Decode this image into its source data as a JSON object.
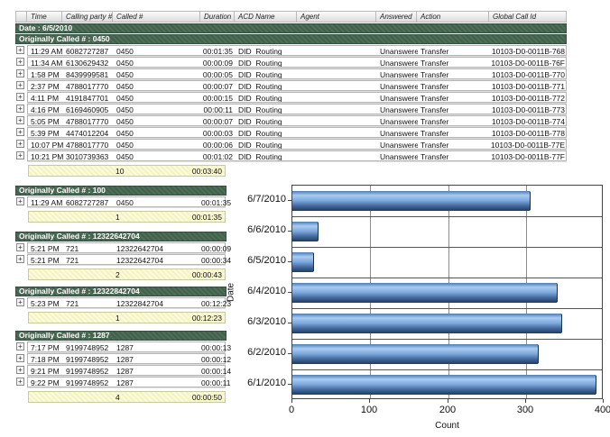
{
  "window": {
    "background": "#ffffff"
  },
  "table": {
    "expander_glyph": "+",
    "columns": [
      "",
      "Time",
      "Calling party #",
      "Called #",
      "Duration",
      "ACD Name",
      "Agent",
      "Answered",
      "Action",
      "Global Call Id"
    ],
    "date_band": "Date : 6/5/2010",
    "groups": [
      {
        "header": "Originally Called # : 0450",
        "rows": [
          {
            "time": "11:29 AM",
            "calling": "6082727287",
            "called": "0450",
            "duration": "00:01:35",
            "acd": "DID_Routing",
            "agent": "",
            "answered": "Unanswered",
            "action": "Transfer",
            "global_id": "10103-D0-0011B-768"
          },
          {
            "time": "11:34 AM",
            "calling": "6130629432",
            "called": "0450",
            "duration": "00:00:09",
            "acd": "DID_Routing",
            "agent": "",
            "answered": "Unanswered",
            "action": "Transfer",
            "global_id": "10103-D0-0011B-76F"
          },
          {
            "time": "1:58 PM",
            "calling": "8439999581",
            "called": "0450",
            "duration": "00:00:05",
            "acd": "DID_Routing",
            "agent": "",
            "answered": "Unanswered",
            "action": "Transfer",
            "global_id": "10103-D0-0011B-770"
          },
          {
            "time": "2:37 PM",
            "calling": "4788017770",
            "called": "0450",
            "duration": "00:00:07",
            "acd": "DID_Routing",
            "agent": "",
            "answered": "Unanswered",
            "action": "Transfer",
            "global_id": "10103-D0-0011B-771"
          },
          {
            "time": "4:11 PM",
            "calling": "4191847701",
            "called": "0450",
            "duration": "00:00:15",
            "acd": "DID_Routing",
            "agent": "",
            "answered": "Unanswered",
            "action": "Transfer",
            "global_id": "10103-D0-0011B-772"
          },
          {
            "time": "4:16 PM",
            "calling": "6169460905",
            "called": "0450",
            "duration": "00:00:11",
            "acd": "DID_Routing",
            "agent": "",
            "answered": "Unanswered",
            "action": "Transfer",
            "global_id": "10103-D0-0011B-773"
          },
          {
            "time": "5:05 PM",
            "calling": "4788017770",
            "called": "0450",
            "duration": "00:00:07",
            "acd": "DID_Routing",
            "agent": "",
            "answered": "Unanswered",
            "action": "Transfer",
            "global_id": "10103-D0-0011B-774"
          },
          {
            "time": "5:39 PM",
            "calling": "4474012204",
            "called": "0450",
            "duration": "00:00:03",
            "acd": "DID_Routing",
            "agent": "",
            "answered": "Unanswered",
            "action": "Transfer",
            "global_id": "10103-D0-0011B-778"
          },
          {
            "time": "10:07 PM",
            "calling": "4788017770",
            "called": "0450",
            "duration": "00:00:06",
            "acd": "DID_Routing",
            "agent": "",
            "answered": "Unanswered",
            "action": "Transfer",
            "global_id": "10103-D0-0011B-77E"
          },
          {
            "time": "10:21 PM",
            "calling": "3010739363",
            "called": "0450",
            "duration": "00:01:02",
            "acd": "DID_Routing",
            "agent": "",
            "answered": "Unanswered",
            "action": "Transfer",
            "global_id": "10103-D0-0011B-77F"
          }
        ],
        "summary": {
          "count": "10",
          "duration": "00:03:40"
        }
      },
      {
        "header": "Originally Called # : 100",
        "rows": [
          {
            "time": "11:29 AM",
            "calling": "6082727287",
            "called": "0450",
            "duration": "00:01:35"
          }
        ],
        "summary": {
          "count": "1",
          "duration": "00:01:35"
        }
      },
      {
        "header": "Originally Called # : 12322642704",
        "rows": [
          {
            "time": "5:21 PM",
            "calling": "721",
            "called": "12322642704",
            "duration": "00:00:09"
          },
          {
            "time": "5:21 PM",
            "calling": "721",
            "called": "12322642704",
            "duration": "00:00:34"
          }
        ],
        "summary": {
          "count": "2",
          "duration": "00:00:43"
        }
      },
      {
        "header": "Originally Called # : 12322842704",
        "rows": [
          {
            "time": "5:23 PM",
            "calling": "721",
            "called": "12322842704",
            "duration": "00:12:23"
          }
        ],
        "summary": {
          "count": "1",
          "duration": "00:12:23"
        }
      },
      {
        "header": "Originally Called # : 1287",
        "rows": [
          {
            "time": "7:17 PM",
            "calling": "9199748952",
            "called": "1287",
            "duration": "00:00:13"
          },
          {
            "time": "7:18 PM",
            "calling": "9199748952",
            "called": "1287",
            "duration": "00:00:12"
          },
          {
            "time": "9:21 PM",
            "calling": "9199748952",
            "called": "1287",
            "duration": "00:00:14"
          },
          {
            "time": "9:22 PM",
            "calling": "9199748952",
            "called": "1287",
            "duration": "00:00:11"
          }
        ],
        "summary": {
          "count": "4",
          "duration": "00:00:50"
        }
      }
    ]
  },
  "chart_data": {
    "type": "bar",
    "orientation": "horizontal",
    "title": "",
    "categories": [
      "6/7/2010",
      "6/6/2010",
      "6/5/2010",
      "6/4/2010",
      "6/3/2010",
      "6/2/2010",
      "6/1/2010"
    ],
    "values": [
      305,
      32,
      27,
      340,
      345,
      315,
      390
    ],
    "xlabel": "Count",
    "ylabel": "Date",
    "xlim": [
      0,
      400
    ],
    "xticks": [
      0,
      100,
      200,
      300,
      400
    ],
    "gridlines": [
      100,
      200,
      300
    ],
    "grid": true,
    "legend": "none",
    "bar_color": "#6a9bd8"
  }
}
